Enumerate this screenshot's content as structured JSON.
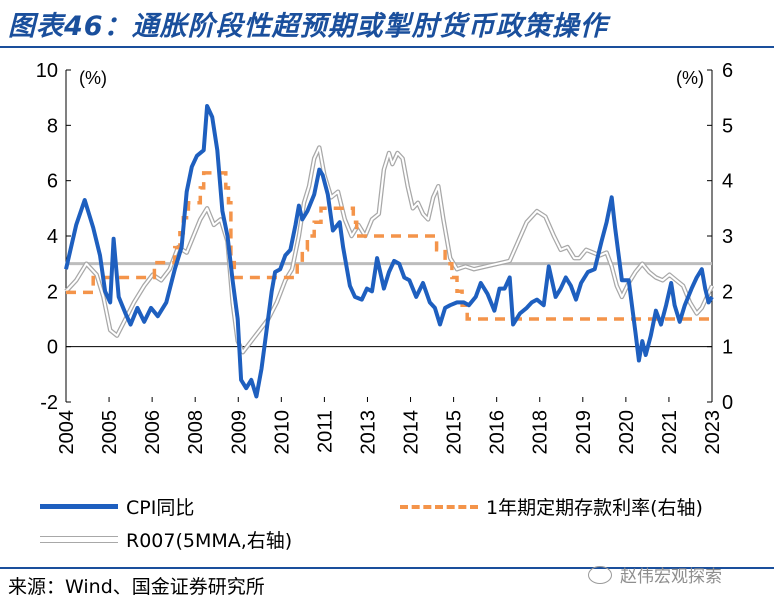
{
  "title": "图表46：通胀阶段性超预期或掣肘货币政策操作",
  "source": "来源：Wind、国金证券研究所",
  "watermark": "赵伟宏观探索",
  "colors": {
    "cpi": "#1e5fbf",
    "deposit": "#f4944a",
    "r007": "#a8a8a8",
    "ref": "#bdbdbd",
    "title": "#1a4f9c"
  },
  "chart_data": {
    "type": "line",
    "x_tick_labels": [
      "2004",
      "2005",
      "2006",
      "2008",
      "2009",
      "2010",
      "2011",
      "2013",
      "2014",
      "2015",
      "2016",
      "2018",
      "2019",
      "2020",
      "2021",
      "2023"
    ],
    "left_axis": {
      "unit_label": "(%)",
      "range": [
        -2,
        10
      ],
      "ticks": [
        -2,
        0,
        2,
        4,
        6,
        8,
        10
      ]
    },
    "right_axis": {
      "unit_label": "(%)",
      "range": [
        0,
        6
      ],
      "ticks": [
        0,
        1,
        2,
        3,
        4,
        5,
        6
      ]
    },
    "reference_line": {
      "axis": "right",
      "value": 2.5
    },
    "series": [
      {
        "name": "CPI同比",
        "axis": "left",
        "style": "solid-thick",
        "points": [
          [
            2004.0,
            2.8
          ],
          [
            2004.3,
            4.4
          ],
          [
            2004.55,
            5.3
          ],
          [
            2004.8,
            4.3
          ],
          [
            2005.0,
            3.3
          ],
          [
            2005.15,
            2.0
          ],
          [
            2005.3,
            1.6
          ],
          [
            2005.4,
            3.9
          ],
          [
            2005.55,
            1.8
          ],
          [
            2005.75,
            1.2
          ],
          [
            2005.9,
            0.8
          ],
          [
            2006.1,
            1.4
          ],
          [
            2006.3,
            0.9
          ],
          [
            2006.5,
            1.4
          ],
          [
            2006.7,
            1.1
          ],
          [
            2006.95,
            1.6
          ],
          [
            2007.2,
            2.8
          ],
          [
            2007.4,
            3.6
          ],
          [
            2007.55,
            5.6
          ],
          [
            2007.7,
            6.5
          ],
          [
            2007.85,
            6.9
          ],
          [
            2008.05,
            7.1
          ],
          [
            2008.15,
            8.7
          ],
          [
            2008.3,
            8.3
          ],
          [
            2008.45,
            7.1
          ],
          [
            2008.6,
            4.9
          ],
          [
            2008.75,
            4.0
          ],
          [
            2008.9,
            2.4
          ],
          [
            2009.05,
            1.0
          ],
          [
            2009.15,
            -1.2
          ],
          [
            2009.3,
            -1.5
          ],
          [
            2009.45,
            -1.2
          ],
          [
            2009.6,
            -1.8
          ],
          [
            2009.75,
            -0.8
          ],
          [
            2009.9,
            0.6
          ],
          [
            2010.05,
            2.0
          ],
          [
            2010.15,
            2.7
          ],
          [
            2010.3,
            2.8
          ],
          [
            2010.45,
            3.3
          ],
          [
            2010.6,
            3.5
          ],
          [
            2010.75,
            4.4
          ],
          [
            2010.85,
            5.1
          ],
          [
            2010.95,
            4.6
          ],
          [
            2011.1,
            4.9
          ],
          [
            2011.3,
            5.5
          ],
          [
            2011.45,
            6.4
          ],
          [
            2011.55,
            6.2
          ],
          [
            2011.7,
            5.5
          ],
          [
            2011.85,
            4.2
          ],
          [
            2012.05,
            4.5
          ],
          [
            2012.15,
            3.6
          ],
          [
            2012.35,
            2.2
          ],
          [
            2012.5,
            1.8
          ],
          [
            2012.7,
            1.7
          ],
          [
            2012.85,
            2.1
          ],
          [
            2013.0,
            2.0
          ],
          [
            2013.15,
            3.2
          ],
          [
            2013.35,
            2.1
          ],
          [
            2013.5,
            2.7
          ],
          [
            2013.65,
            3.1
          ],
          [
            2013.8,
            3.0
          ],
          [
            2013.95,
            2.5
          ],
          [
            2014.1,
            2.4
          ],
          [
            2014.3,
            1.8
          ],
          [
            2014.5,
            2.3
          ],
          [
            2014.7,
            1.6
          ],
          [
            2014.85,
            1.4
          ],
          [
            2015.0,
            0.8
          ],
          [
            2015.15,
            1.4
          ],
          [
            2015.3,
            1.5
          ],
          [
            2015.5,
            1.6
          ],
          [
            2015.7,
            1.6
          ],
          [
            2015.85,
            1.5
          ],
          [
            2016.05,
            1.8
          ],
          [
            2016.2,
            2.3
          ],
          [
            2016.4,
            1.9
          ],
          [
            2016.6,
            1.3
          ],
          [
            2016.75,
            2.1
          ],
          [
            2016.9,
            2.1
          ],
          [
            2017.05,
            2.5
          ],
          [
            2017.15,
            0.8
          ],
          [
            2017.35,
            1.2
          ],
          [
            2017.55,
            1.4
          ],
          [
            2017.7,
            1.6
          ],
          [
            2017.85,
            1.7
          ],
          [
            2018.05,
            1.5
          ],
          [
            2018.2,
            2.9
          ],
          [
            2018.4,
            1.8
          ],
          [
            2018.55,
            2.1
          ],
          [
            2018.7,
            2.5
          ],
          [
            2018.85,
            2.2
          ],
          [
            2019.0,
            1.7
          ],
          [
            2019.15,
            2.3
          ],
          [
            2019.35,
            2.7
          ],
          [
            2019.55,
            2.8
          ],
          [
            2019.75,
            3.8
          ],
          [
            2019.9,
            4.5
          ],
          [
            2020.05,
            5.4
          ],
          [
            2020.15,
            4.3
          ],
          [
            2020.35,
            2.4
          ],
          [
            2020.55,
            2.4
          ],
          [
            2020.75,
            0.5
          ],
          [
            2020.85,
            -0.5
          ],
          [
            2020.95,
            0.2
          ],
          [
            2021.05,
            -0.3
          ],
          [
            2021.2,
            0.4
          ],
          [
            2021.35,
            1.3
          ],
          [
            2021.5,
            0.8
          ],
          [
            2021.65,
            1.5
          ],
          [
            2021.8,
            2.3
          ],
          [
            2021.9,
            1.5
          ],
          [
            2022.05,
            0.9
          ],
          [
            2022.2,
            1.5
          ],
          [
            2022.4,
            2.1
          ],
          [
            2022.55,
            2.5
          ],
          [
            2022.7,
            2.8
          ],
          [
            2022.8,
            2.1
          ],
          [
            2022.9,
            1.6
          ],
          [
            2023.0,
            1.8
          ]
        ]
      },
      {
        "name": "1年期定期存款利率(右轴)",
        "axis": "right",
        "style": "dashed",
        "points": [
          [
            2004.0,
            1.98
          ],
          [
            2004.8,
            1.98
          ],
          [
            2004.8,
            2.25
          ],
          [
            2006.6,
            2.25
          ],
          [
            2006.6,
            2.52
          ],
          [
            2007.2,
            2.52
          ],
          [
            2007.2,
            2.79
          ],
          [
            2007.35,
            2.79
          ],
          [
            2007.35,
            3.06
          ],
          [
            2007.45,
            3.06
          ],
          [
            2007.45,
            3.33
          ],
          [
            2007.6,
            3.33
          ],
          [
            2007.6,
            3.6
          ],
          [
            2007.95,
            3.6
          ],
          [
            2007.95,
            3.87
          ],
          [
            2008.05,
            3.87
          ],
          [
            2008.05,
            4.14
          ],
          [
            2008.7,
            4.14
          ],
          [
            2008.7,
            3.87
          ],
          [
            2008.78,
            3.87
          ],
          [
            2008.78,
            3.6
          ],
          [
            2008.85,
            3.6
          ],
          [
            2008.85,
            2.52
          ],
          [
            2008.95,
            2.52
          ],
          [
            2008.95,
            2.25
          ],
          [
            2010.8,
            2.25
          ],
          [
            2010.8,
            2.5
          ],
          [
            2010.95,
            2.5
          ],
          [
            2010.95,
            2.75
          ],
          [
            2011.1,
            2.75
          ],
          [
            2011.1,
            3.0
          ],
          [
            2011.3,
            3.0
          ],
          [
            2011.3,
            3.25
          ],
          [
            2011.5,
            3.25
          ],
          [
            2011.5,
            3.5
          ],
          [
            2012.45,
            3.5
          ],
          [
            2012.45,
            3.25
          ],
          [
            2012.55,
            3.25
          ],
          [
            2012.55,
            3.0
          ],
          [
            2014.9,
            3.0
          ],
          [
            2014.9,
            2.75
          ],
          [
            2015.15,
            2.75
          ],
          [
            2015.15,
            2.5
          ],
          [
            2015.35,
            2.5
          ],
          [
            2015.35,
            2.25
          ],
          [
            2015.5,
            2.25
          ],
          [
            2015.5,
            2.0
          ],
          [
            2015.65,
            2.0
          ],
          [
            2015.65,
            1.75
          ],
          [
            2015.8,
            1.75
          ],
          [
            2015.8,
            1.5
          ],
          [
            2023.0,
            1.5
          ]
        ]
      },
      {
        "name": "R007(5MMA,右轴)",
        "axis": "right",
        "style": "double-gray",
        "points": [
          [
            2004.0,
            2.0
          ],
          [
            2004.3,
            2.2
          ],
          [
            2004.6,
            2.5
          ],
          [
            2004.9,
            2.3
          ],
          [
            2005.1,
            1.9
          ],
          [
            2005.3,
            1.3
          ],
          [
            2005.5,
            1.2
          ],
          [
            2005.75,
            1.5
          ],
          [
            2006.0,
            1.8
          ],
          [
            2006.3,
            2.1
          ],
          [
            2006.55,
            2.3
          ],
          [
            2006.8,
            2.2
          ],
          [
            2007.05,
            2.4
          ],
          [
            2007.3,
            2.8
          ],
          [
            2007.55,
            2.7
          ],
          [
            2007.75,
            3.0
          ],
          [
            2007.95,
            3.3
          ],
          [
            2008.15,
            3.5
          ],
          [
            2008.35,
            3.2
          ],
          [
            2008.55,
            3.3
          ],
          [
            2008.75,
            2.9
          ],
          [
            2008.9,
            1.8
          ],
          [
            2009.05,
            1.1
          ],
          [
            2009.2,
            0.9
          ],
          [
            2009.45,
            1.1
          ],
          [
            2009.7,
            1.3
          ],
          [
            2009.95,
            1.5
          ],
          [
            2010.2,
            1.8
          ],
          [
            2010.45,
            2.2
          ],
          [
            2010.65,
            2.4
          ],
          [
            2010.85,
            3.0
          ],
          [
            2011.0,
            3.6
          ],
          [
            2011.15,
            3.9
          ],
          [
            2011.3,
            4.4
          ],
          [
            2011.45,
            4.6
          ],
          [
            2011.6,
            4.1
          ],
          [
            2011.8,
            3.7
          ],
          [
            2012.0,
            3.8
          ],
          [
            2012.2,
            3.3
          ],
          [
            2012.4,
            3.0
          ],
          [
            2012.6,
            3.2
          ],
          [
            2012.8,
            3.0
          ],
          [
            2013.0,
            3.3
          ],
          [
            2013.2,
            3.4
          ],
          [
            2013.35,
            4.2
          ],
          [
            2013.5,
            4.5
          ],
          [
            2013.6,
            4.3
          ],
          [
            2013.75,
            4.5
          ],
          [
            2013.9,
            4.4
          ],
          [
            2014.05,
            3.9
          ],
          [
            2014.2,
            3.5
          ],
          [
            2014.35,
            3.6
          ],
          [
            2014.5,
            3.4
          ],
          [
            2014.65,
            3.3
          ],
          [
            2014.8,
            3.7
          ],
          [
            2014.95,
            3.9
          ],
          [
            2015.1,
            3.3
          ],
          [
            2015.3,
            2.6
          ],
          [
            2015.5,
            2.4
          ],
          [
            2015.75,
            2.45
          ],
          [
            2016.0,
            2.4
          ],
          [
            2016.35,
            2.45
          ],
          [
            2016.7,
            2.5
          ],
          [
            2017.05,
            2.55
          ],
          [
            2017.3,
            2.9
          ],
          [
            2017.55,
            3.25
          ],
          [
            2017.85,
            3.45
          ],
          [
            2018.1,
            3.35
          ],
          [
            2018.35,
            3.0
          ],
          [
            2018.55,
            2.75
          ],
          [
            2018.75,
            2.8
          ],
          [
            2018.95,
            2.6
          ],
          [
            2019.1,
            2.6
          ],
          [
            2019.3,
            2.75
          ],
          [
            2019.5,
            2.7
          ],
          [
            2019.7,
            2.65
          ],
          [
            2019.9,
            2.7
          ],
          [
            2020.05,
            2.45
          ],
          [
            2020.2,
            2.1
          ],
          [
            2020.35,
            1.9
          ],
          [
            2020.55,
            2.15
          ],
          [
            2020.75,
            2.35
          ],
          [
            2020.95,
            2.5
          ],
          [
            2021.15,
            2.35
          ],
          [
            2021.35,
            2.25
          ],
          [
            2021.55,
            2.2
          ],
          [
            2021.75,
            2.3
          ],
          [
            2021.95,
            2.2
          ],
          [
            2022.15,
            2.1
          ],
          [
            2022.35,
            1.8
          ],
          [
            2022.55,
            1.6
          ],
          [
            2022.7,
            1.7
          ],
          [
            2022.85,
            1.9
          ],
          [
            2023.0,
            2.1
          ]
        ]
      }
    ]
  }
}
